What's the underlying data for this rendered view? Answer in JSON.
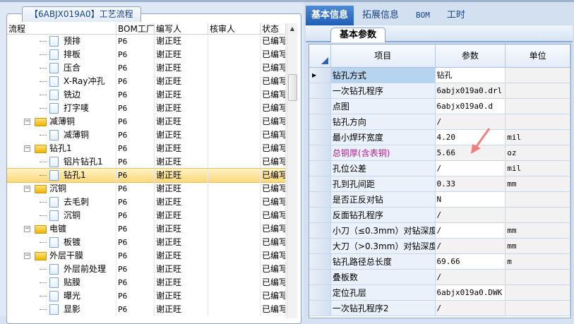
{
  "left_panel": {
    "title": "【6ABJX019A0】工艺流程",
    "columns": [
      "流程",
      "BOM工厂",
      "编写人",
      "核审人",
      "状态"
    ],
    "rows": [
      {
        "name": "预排",
        "type": "doc",
        "bom": "P6",
        "writer": "谢正旺",
        "reviewer": "",
        "status": "已编写"
      },
      {
        "name": "排板",
        "type": "doc",
        "bom": "P6",
        "writer": "谢正旺",
        "reviewer": "",
        "status": "已编写"
      },
      {
        "name": "压合",
        "type": "doc",
        "bom": "P6",
        "writer": "谢正旺",
        "reviewer": "",
        "status": "已编写"
      },
      {
        "name": "X-Ray冲孔",
        "type": "doc",
        "bom": "P6",
        "writer": "谢正旺",
        "reviewer": "",
        "status": "已编写"
      },
      {
        "name": "铣边",
        "type": "doc",
        "bom": "P6",
        "writer": "谢正旺",
        "reviewer": "",
        "status": "已编写"
      },
      {
        "name": "打字唛",
        "type": "doc",
        "bom": "P6",
        "writer": "谢正旺",
        "reviewer": "",
        "status": "已编写"
      },
      {
        "name": "减薄铜",
        "type": "folder",
        "bom": "P6",
        "writer": "谢正旺",
        "reviewer": "",
        "status": "已编写"
      },
      {
        "name": "减薄铜",
        "type": "doc",
        "bom": "P6",
        "writer": "谢正旺",
        "reviewer": "",
        "status": "已编写"
      },
      {
        "name": "钻孔1",
        "type": "folder",
        "bom": "P6",
        "writer": "谢正旺",
        "reviewer": "",
        "status": "已编写"
      },
      {
        "name": "铝片钻孔1",
        "type": "doc",
        "bom": "P6",
        "writer": "谢正旺",
        "reviewer": "",
        "status": "已编写"
      },
      {
        "name": "钻孔1",
        "type": "doc",
        "bom": "P6",
        "writer": "谢正旺",
        "reviewer": "",
        "status": "已编写",
        "selected": true
      },
      {
        "name": "沉铜",
        "type": "folder",
        "bom": "P6",
        "writer": "谢正旺",
        "reviewer": "",
        "status": "已编写"
      },
      {
        "name": "去毛刺",
        "type": "doc",
        "bom": "P6",
        "writer": "谢正旺",
        "reviewer": "",
        "status": "已编写"
      },
      {
        "name": "沉铜",
        "type": "doc",
        "bom": "P6",
        "writer": "谢正旺",
        "reviewer": "",
        "status": "已编写"
      },
      {
        "name": "电镀",
        "type": "folder",
        "bom": "P6",
        "writer": "谢正旺",
        "reviewer": "",
        "status": "已编写"
      },
      {
        "name": "板镀",
        "type": "doc",
        "bom": "P6",
        "writer": "谢正旺",
        "reviewer": "",
        "status": "已编写"
      },
      {
        "name": "外层干膜",
        "type": "folder",
        "bom": "P6",
        "writer": "谢正旺",
        "reviewer": "",
        "status": "已编写"
      },
      {
        "name": "外层前处理",
        "type": "doc",
        "bom": "P6",
        "writer": "谢正旺",
        "reviewer": "",
        "status": "已编写"
      },
      {
        "name": "贴膜",
        "type": "doc",
        "bom": "P6",
        "writer": "谢正旺",
        "reviewer": "",
        "status": "已编写"
      },
      {
        "name": "曝光",
        "type": "doc",
        "bom": "P6",
        "writer": "谢正旺",
        "reviewer": "",
        "status": "已编写"
      },
      {
        "name": "显影",
        "type": "doc",
        "bom": "P6",
        "writer": "谢正旺",
        "reviewer": "",
        "status": "已编写"
      }
    ]
  },
  "right_panel": {
    "tabs": [
      {
        "label": "基本信息",
        "active": true
      },
      {
        "label": "拓展信息"
      },
      {
        "label": "BOM"
      },
      {
        "label": "工时"
      }
    ],
    "subtab": "基本参数",
    "columns": [
      "项目",
      "参数",
      "单位"
    ],
    "rows": [
      {
        "item": "钻孔方式",
        "value": "钻孔",
        "unit": "",
        "selected": true
      },
      {
        "item": "一次钻孔程序",
        "value": "6abjx019a0.drl",
        "unit": ""
      },
      {
        "item": "点图",
        "value": "6abjx019a0.d",
        "unit": ""
      },
      {
        "item": "钻孔方向",
        "value": "/",
        "unit": ""
      },
      {
        "item": "最小焊环宽度",
        "value": "4.20",
        "unit": "mil"
      },
      {
        "item": "总铜厚(含表铜)",
        "value": "5.66",
        "unit": "oz",
        "highlight": "#b0208c"
      },
      {
        "item": "孔位公差",
        "value": "/",
        "unit": "mil"
      },
      {
        "item": "孔到孔间距",
        "value": "0.33",
        "unit": "mm"
      },
      {
        "item": "是否正反对钻",
        "value": "N",
        "unit": ""
      },
      {
        "item": "反面钻孔程序",
        "value": "/",
        "unit": ""
      },
      {
        "item": "小刀（≤0.3mm）对钻深度",
        "value": "/",
        "unit": "mm"
      },
      {
        "item": "大刀（>0.3mm）对钻深度",
        "value": "/",
        "unit": "mm"
      },
      {
        "item": "钻孔路径总长度",
        "value": "69.66",
        "unit": "m"
      },
      {
        "item": "叠板数",
        "value": "/",
        "unit": ""
      },
      {
        "item": "定位孔层",
        "value": "6abjx019a0.DWK",
        "unit": ""
      },
      {
        "item": "一次钻孔程序2",
        "value": "/",
        "unit": ""
      }
    ]
  },
  "colors": {
    "accent": "#1e5eb4",
    "selected_row": "#fbd878",
    "highlight_text": "#b0208c",
    "annotation_arrow": "#f08080"
  }
}
